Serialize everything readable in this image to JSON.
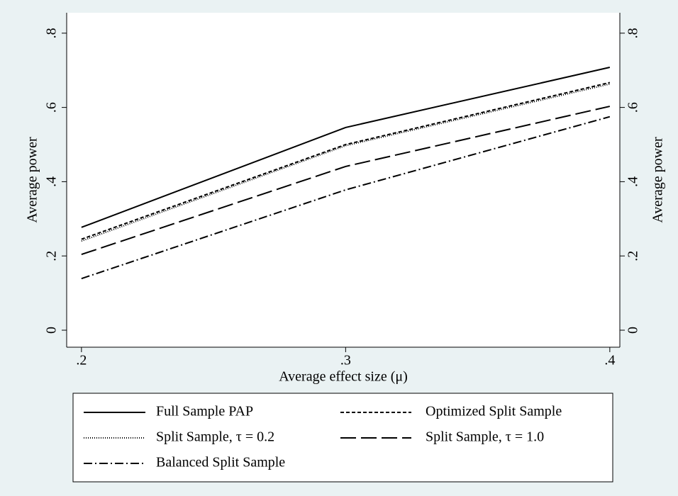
{
  "chart_data": {
    "type": "line",
    "x_label": "Average effect size (μ)",
    "y_label": "Average power",
    "y2_label": "Average power",
    "x": [
      0.2,
      0.3,
      0.4
    ],
    "xlim": [
      0.1944,
      0.4038
    ],
    "xticks": [
      {
        "value": 0.2,
        "label": ".2"
      },
      {
        "value": 0.3,
        "label": ".3"
      },
      {
        "value": 0.4,
        "label": ".4"
      }
    ],
    "ylim": [
      -0.0458,
      0.855
    ],
    "yticks": [
      0,
      {
        "value": 0.2,
        "label": ".2"
      },
      {
        "value": 0.4,
        "label": ".4"
      },
      {
        "value": 0.6,
        "label": ".6"
      },
      {
        "value": 0.8,
        "label": ".8"
      }
    ],
    "y2lim": [
      -0.0458,
      0.855
    ],
    "y2ticks": [
      0,
      {
        "value": 0.2,
        "label": ".2"
      },
      {
        "value": 0.4,
        "label": ".4"
      },
      {
        "value": 0.6,
        "label": ".6"
      },
      {
        "value": 0.8,
        "label": ".8"
      }
    ],
    "series": [
      {
        "name": "Full Sample PAP",
        "color": "#000000",
        "dash": "none",
        "values": [
          0.277,
          0.546,
          0.708
        ]
      },
      {
        "name": "Optimized Split Sample",
        "color": "#000000",
        "dash": "5,3",
        "values": [
          0.245,
          0.5,
          0.667
        ]
      },
      {
        "name": "Split Sample, τ = 0.2",
        "color": "#000000",
        "dash": "1,2",
        "values": [
          0.24,
          0.497,
          0.663
        ]
      },
      {
        "name": "Split Sample, τ = 1.0",
        "color": "#000000",
        "dash": "22,7",
        "values": [
          0.204,
          0.441,
          0.603
        ]
      },
      {
        "name": "Balanced Split Sample",
        "color": "#000000",
        "dash": "12,4,2,4",
        "values": [
          0.139,
          0.378,
          0.575
        ]
      }
    ]
  }
}
